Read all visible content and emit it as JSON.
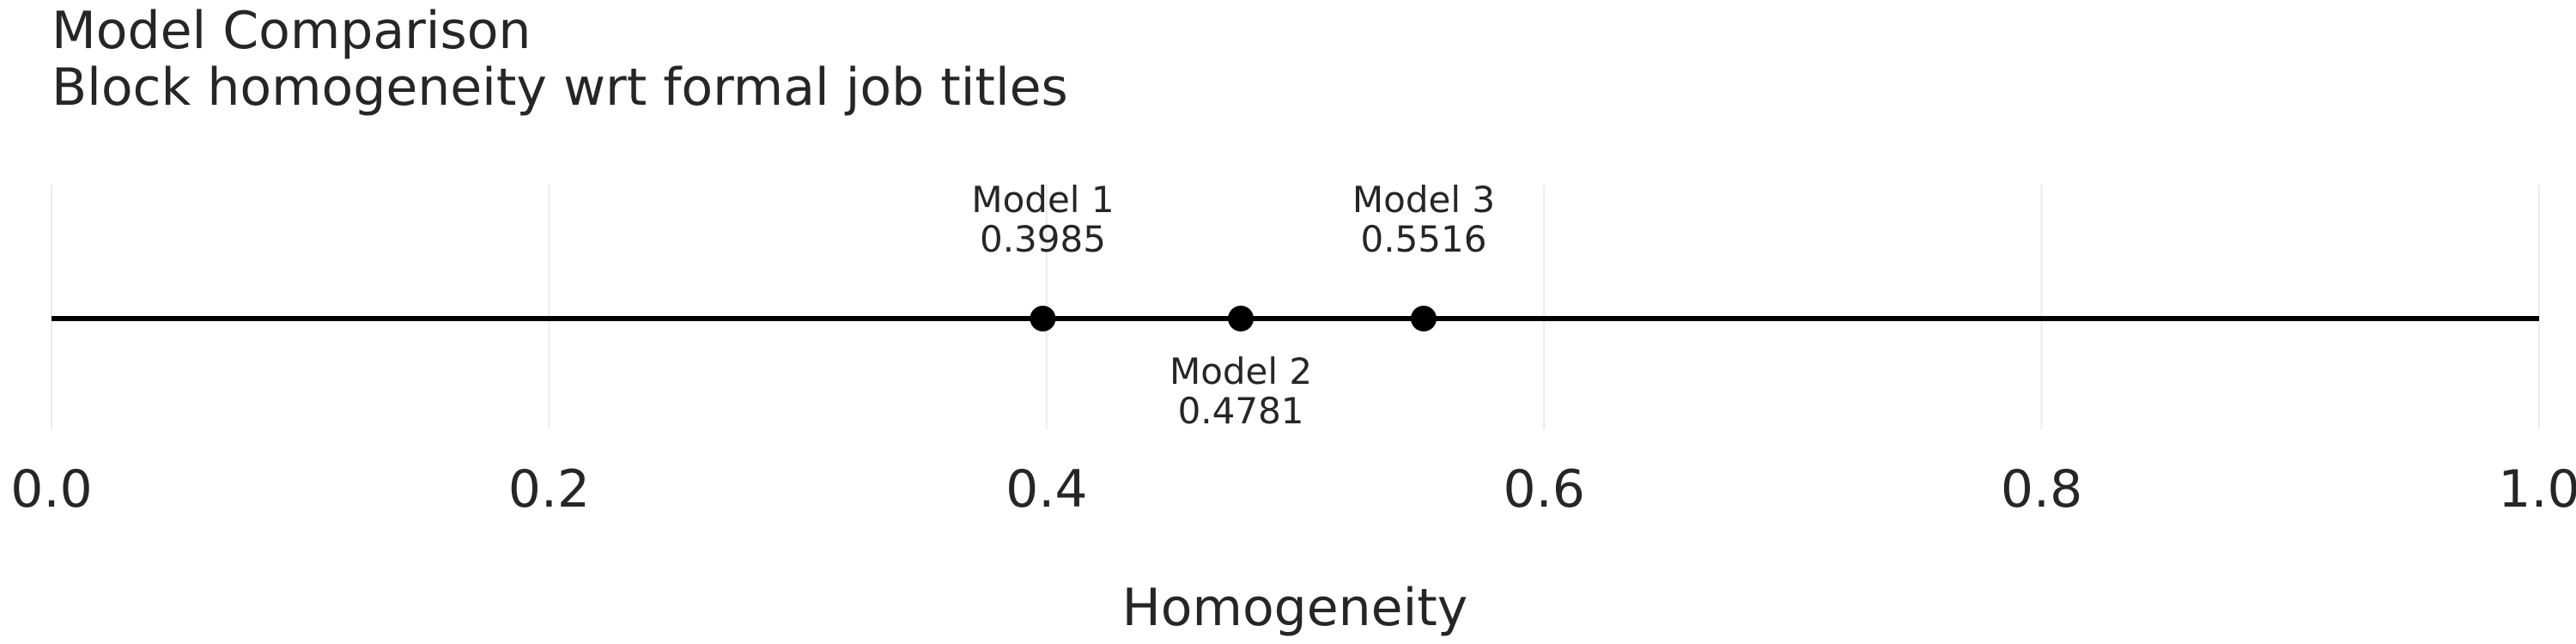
{
  "chart_data": {
    "type": "scatter",
    "title": "Model Comparison",
    "subtitle": "Block homogeneity wrt formal job titles",
    "xlabel": "Homogeneity",
    "ylabel": "",
    "xlim": [
      0.0,
      1.0
    ],
    "x_ticks": [
      0.0,
      0.2,
      0.4,
      0.6,
      0.8,
      1.0
    ],
    "x_tick_labels": [
      "0.0",
      "0.2",
      "0.4",
      "0.6",
      "0.8",
      "1.0"
    ],
    "grid": "vertical",
    "points": [
      {
        "name": "Model 1",
        "x": 0.3985,
        "label_value": "0.3985",
        "label_position": "above"
      },
      {
        "name": "Model 2",
        "x": 0.4781,
        "label_value": "0.4781",
        "label_position": "below"
      },
      {
        "name": "Model 3",
        "x": 0.5516,
        "label_value": "0.5516",
        "label_position": "above"
      }
    ],
    "colors": {
      "line": "#000000",
      "points": "#000000",
      "grid": "#ebebeb",
      "text": "#262626"
    }
  }
}
